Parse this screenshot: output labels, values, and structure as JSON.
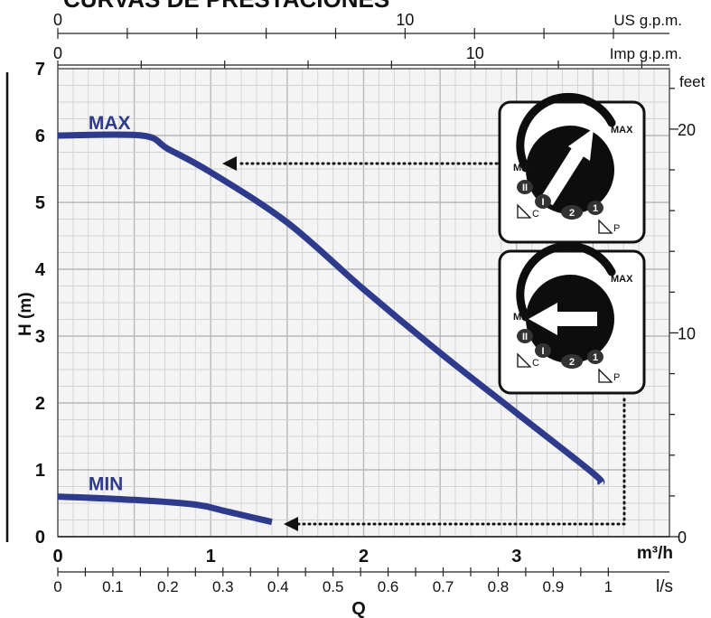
{
  "title": "CURVAS DE PRESTACIONES",
  "chart_data": {
    "type": "line",
    "x_unit_label": "m³/h",
    "xlabel": "Q",
    "ylabel": "H (m)",
    "xlim": [
      0,
      4
    ],
    "ylim": [
      0,
      7
    ],
    "x_ticks": [
      "0",
      "1",
      "2",
      "3"
    ],
    "y_ticks": [
      "0",
      "1",
      "2",
      "3",
      "4",
      "5",
      "6",
      "7"
    ],
    "grid": true,
    "series": [
      {
        "name": "MAX",
        "color": "#2e3a8c",
        "points": [
          [
            0,
            6.0
          ],
          [
            0.55,
            6.0
          ],
          [
            0.72,
            5.8
          ],
          [
            1.0,
            5.45
          ],
          [
            1.5,
            4.7
          ],
          [
            2.0,
            3.7
          ],
          [
            2.5,
            2.75
          ],
          [
            3.0,
            1.85
          ],
          [
            3.5,
            0.95
          ],
          [
            3.55,
            0.8
          ]
        ]
      },
      {
        "name": "MIN",
        "color": "#2e3a8c",
        "points": [
          [
            0,
            0.6
          ],
          [
            0.5,
            0.55
          ],
          [
            0.9,
            0.48
          ],
          [
            1.1,
            0.38
          ],
          [
            1.4,
            0.22
          ]
        ]
      }
    ],
    "secondary_axes": {
      "us_gpm": {
        "label": "US g.p.m.",
        "ticks": [
          {
            "value": 0,
            "label": "0"
          },
          {
            "value": 10,
            "label": "10"
          }
        ]
      },
      "imp_gpm": {
        "label": "Imp g.p.m.",
        "ticks": [
          {
            "value": 0,
            "label": "0"
          },
          {
            "value": 10,
            "label": "10"
          }
        ]
      },
      "lps": {
        "label": "l/s",
        "ticks": [
          "0",
          "0.1",
          "0.2",
          "0.3",
          "0.4",
          "0.5",
          "0.6",
          "0.7",
          "0.8",
          "0.9",
          "1"
        ]
      },
      "feet": {
        "label": "feet",
        "ticks": [
          {
            "value": 0,
            "label": "0"
          },
          {
            "value": 10,
            "label": "10"
          },
          {
            "value": 20,
            "label": "20"
          }
        ]
      }
    },
    "knobs": [
      {
        "setting": "MAX",
        "max_label": "MAX",
        "min_label": "MIN",
        "pos_labels": [
          "II",
          "I",
          "2",
          "1"
        ],
        "left_mode": "C",
        "right_mode": "P"
      },
      {
        "setting": "MIN",
        "max_label": "MAX",
        "min_label": "MIN",
        "pos_labels": [
          "II",
          "I",
          "2",
          "1"
        ],
        "left_mode": "C",
        "right_mode": "P"
      }
    ]
  }
}
